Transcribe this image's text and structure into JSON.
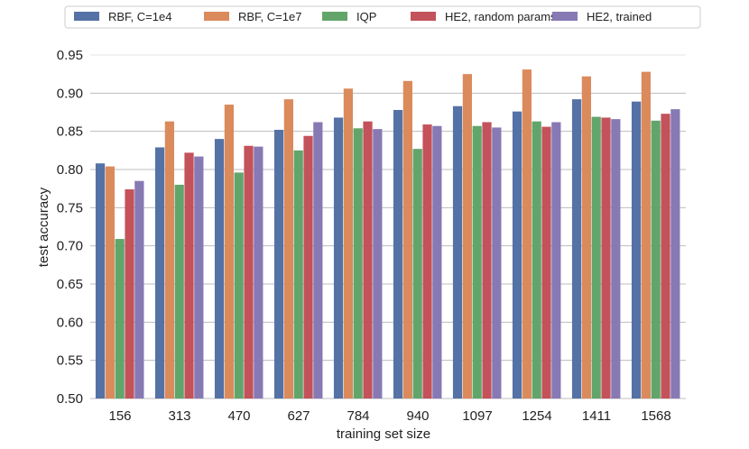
{
  "chart_data": {
    "type": "bar",
    "xlabel": "training set size",
    "ylabel": "test accuracy",
    "ylim": [
      0.5,
      0.95
    ],
    "yticks": [
      "0.50",
      "0.55",
      "0.60",
      "0.65",
      "0.70",
      "0.75",
      "0.80",
      "0.85",
      "0.90",
      "0.95"
    ],
    "grid": "horizontal",
    "legend_position": "top",
    "categories": [
      "156",
      "313",
      "470",
      "627",
      "784",
      "940",
      "1097",
      "1254",
      "1411",
      "1568"
    ],
    "series": [
      {
        "name": "RBF, C=1e4",
        "color": "#5572a6",
        "values": [
          0.808,
          0.829,
          0.84,
          0.852,
          0.868,
          0.878,
          0.883,
          0.876,
          0.892,
          0.889
        ]
      },
      {
        "name": "RBF, C=1e7",
        "color": "#db8a5c",
        "values": [
          0.804,
          0.863,
          0.885,
          0.892,
          0.906,
          0.916,
          0.925,
          0.931,
          0.922,
          0.928
        ]
      },
      {
        "name": "IQP",
        "color": "#61a56b",
        "values": [
          0.709,
          0.78,
          0.796,
          0.825,
          0.854,
          0.827,
          0.857,
          0.863,
          0.869,
          0.864
        ]
      },
      {
        "name": "HE2, random params",
        "color": "#c3525a",
        "values": [
          0.774,
          0.822,
          0.831,
          0.844,
          0.863,
          0.859,
          0.862,
          0.856,
          0.868,
          0.873
        ]
      },
      {
        "name": "HE2, trained",
        "color": "#8779b4",
        "values": [
          0.785,
          0.817,
          0.83,
          0.862,
          0.853,
          0.857,
          0.855,
          0.862,
          0.866,
          0.879
        ]
      }
    ]
  }
}
